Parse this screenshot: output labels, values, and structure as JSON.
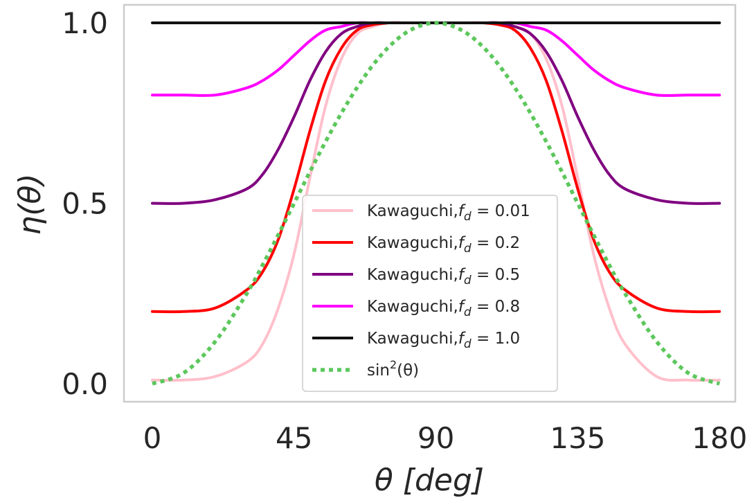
{
  "chart_data": {
    "type": "line",
    "xlabel": "θ [deg]",
    "ylabel": "η(θ)",
    "xlim": [
      -9,
      185
    ],
    "ylim": [
      -0.05,
      1.05
    ],
    "xticks": [
      0,
      45,
      90,
      135,
      180
    ],
    "xtick_labels": [
      "0",
      "45",
      "90",
      "135",
      "180"
    ],
    "yticks": [
      0.0,
      0.5,
      1.0
    ],
    "ytick_labels": [
      "0.0",
      "0.5",
      "1.0"
    ],
    "grid": false,
    "legend_position": "lower-center",
    "x": [
      0,
      10,
      20,
      30,
      35,
      40,
      45,
      50,
      55,
      60,
      65,
      70,
      75,
      80,
      85,
      90,
      95,
      100,
      105,
      110,
      115,
      120,
      125,
      130,
      135,
      140,
      145,
      150,
      160,
      170,
      180
    ],
    "series": [
      {
        "name": "Kawaguchi,",
        "param": "0.01",
        "color": "#ffc0cb",
        "style": "solid",
        "values": [
          0.01,
          0.01,
          0.02,
          0.06,
          0.11,
          0.21,
          0.36,
          0.57,
          0.77,
          0.9,
          0.97,
          0.99,
          1.0,
          1.0,
          1.0,
          1.0,
          1.0,
          1.0,
          1.0,
          1.0,
          0.99,
          0.97,
          0.9,
          0.77,
          0.57,
          0.36,
          0.21,
          0.11,
          0.02,
          0.01,
          0.01
        ]
      },
      {
        "name": "Kawaguchi,",
        "param": "0.2",
        "color": "#ff0000",
        "style": "solid",
        "values": [
          0.2,
          0.2,
          0.21,
          0.26,
          0.31,
          0.4,
          0.54,
          0.7,
          0.84,
          0.93,
          0.98,
          0.995,
          1.0,
          1.0,
          1.0,
          1.0,
          1.0,
          1.0,
          1.0,
          0.995,
          0.98,
          0.93,
          0.84,
          0.7,
          0.54,
          0.4,
          0.31,
          0.26,
          0.21,
          0.2,
          0.2
        ]
      },
      {
        "name": "Kawaguchi,",
        "param": "0.5",
        "color": "#800080",
        "style": "solid",
        "values": [
          0.5,
          0.5,
          0.51,
          0.54,
          0.58,
          0.65,
          0.74,
          0.84,
          0.92,
          0.97,
          0.99,
          1.0,
          1.0,
          1.0,
          1.0,
          1.0,
          1.0,
          1.0,
          1.0,
          1.0,
          0.99,
          0.97,
          0.92,
          0.84,
          0.74,
          0.65,
          0.58,
          0.54,
          0.51,
          0.5,
          0.5
        ]
      },
      {
        "name": "Kawaguchi,",
        "param": "0.8",
        "color": "#ff00ff",
        "style": "solid",
        "values": [
          0.8,
          0.8,
          0.8,
          0.82,
          0.84,
          0.87,
          0.91,
          0.95,
          0.98,
          0.99,
          1.0,
          1.0,
          1.0,
          1.0,
          1.0,
          1.0,
          1.0,
          1.0,
          1.0,
          1.0,
          1.0,
          0.99,
          0.98,
          0.95,
          0.91,
          0.87,
          0.84,
          0.82,
          0.8,
          0.8,
          0.8
        ]
      },
      {
        "name": "Kawaguchi,",
        "param": "1.0",
        "color": "#111111",
        "style": "solid",
        "values": [
          1.0,
          1.0,
          1.0,
          1.0,
          1.0,
          1.0,
          1.0,
          1.0,
          1.0,
          1.0,
          1.0,
          1.0,
          1.0,
          1.0,
          1.0,
          1.0,
          1.0,
          1.0,
          1.0,
          1.0,
          1.0,
          1.0,
          1.0,
          1.0,
          1.0,
          1.0,
          1.0,
          1.0,
          1.0,
          1.0,
          1.0
        ]
      },
      {
        "name": "sin",
        "param": "(θ)",
        "color": "#5cc75c",
        "style": "dotted",
        "values": [
          0.0,
          0.03,
          0.117,
          0.25,
          0.329,
          0.413,
          0.5,
          0.587,
          0.671,
          0.75,
          0.821,
          0.883,
          0.933,
          0.97,
          0.992,
          1.0,
          0.992,
          0.97,
          0.933,
          0.883,
          0.821,
          0.75,
          0.671,
          0.587,
          0.5,
          0.413,
          0.329,
          0.25,
          0.117,
          0.03,
          0.0
        ]
      }
    ],
    "legend_entries": [
      {
        "prefix": "Kawaguchi,",
        "sym": "f",
        "sub": "d",
        "suffix": " = 0.01"
      },
      {
        "prefix": "Kawaguchi,",
        "sym": "f",
        "sub": "d",
        "suffix": " = 0.2"
      },
      {
        "prefix": "Kawaguchi,",
        "sym": "f",
        "sub": "d",
        "suffix": " = 0.5"
      },
      {
        "prefix": "Kawaguchi,",
        "sym": "f",
        "sub": "d",
        "suffix": " = 0.8"
      },
      {
        "prefix": "Kawaguchi,",
        "sym": "f",
        "sub": "d",
        "suffix": " = 1.0"
      },
      {
        "prefix": "sin",
        "sup": "2",
        "suffix": "(θ)"
      }
    ]
  }
}
